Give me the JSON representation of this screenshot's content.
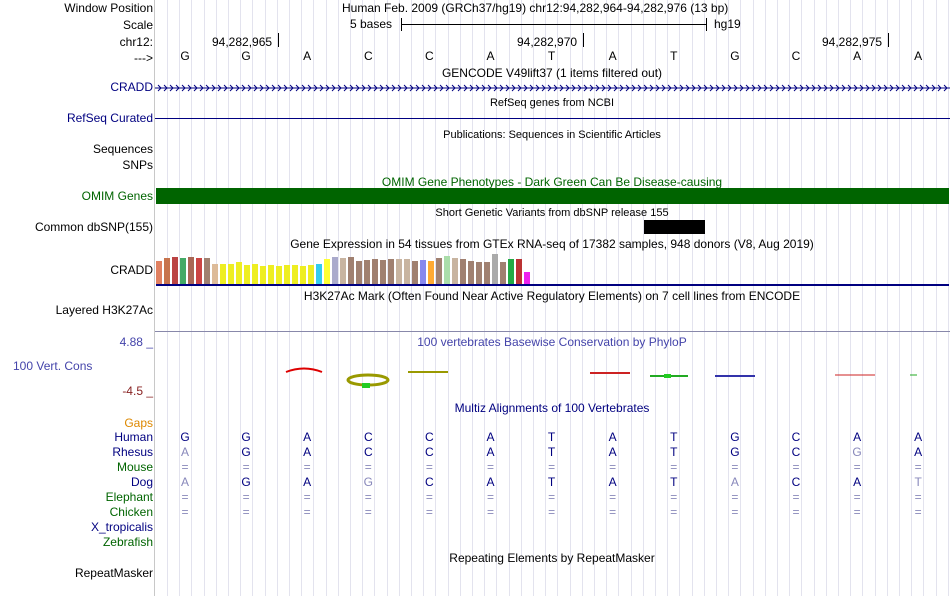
{
  "header": {
    "window_position_label": "Window Position",
    "window_position_value": "Human Feb. 2009 (GRCh37/hg19)   chr12:94,282,964-94,282,976 (13 bp)",
    "scale_label": "Scale",
    "scale_text": "5 bases",
    "scale_assembly": "hg19",
    "chrom_label": "chr12:",
    "positions": [
      "94,282,965",
      "94,282,970",
      "94,282,975"
    ],
    "strand_label": "--->"
  },
  "sequence": [
    "G",
    "G",
    "A",
    "C",
    "C",
    "A",
    "T",
    "A",
    "T",
    "G",
    "C",
    "A",
    "A"
  ],
  "tracks": {
    "gencode": {
      "title": "GENCODE V49lift37 (1 items filtered out)",
      "label": "CRADD"
    },
    "refseq": {
      "title": "RefSeq genes from NCBI",
      "label": "RefSeq Curated"
    },
    "publications": {
      "title": "Publications: Sequences in Scientific Articles",
      "label_line1": "Sequences",
      "label_line2": "SNPs"
    },
    "omim": {
      "title": "OMIM Gene Phenotypes - Dark Green Can Be Disease-causing",
      "label": "OMIM Genes"
    },
    "dbsnp": {
      "title": "Short Genetic Variants from dbSNP release 155",
      "label": "Common dbSNP(155)"
    },
    "gtex": {
      "title": "Gene Expression in 54 tissues from GTEx RNA-seq of 17382 samples, 948 donors (V8, Aug 2019)",
      "label": "CRADD",
      "bar_colors": [
        "#e08060",
        "#c7744d",
        "#bb4444",
        "#44aa66",
        "#aa6655",
        "#cc4444",
        "#a08070",
        "#ddbb99",
        "#eeee22",
        "#eeee22",
        "#eeee22",
        "#eeee22",
        "#eeee22",
        "#eeee22",
        "#eeee22",
        "#eeee22",
        "#eeee22",
        "#eeee22",
        "#eeee22",
        "#eeee22",
        "#33ccee",
        "#ffff33",
        "#aaaacc",
        "#c8b4a0",
        "#a08070",
        "#a08070",
        "#a08070",
        "#a08070",
        "#a08070",
        "#a08070",
        "#c8b4a0",
        "#c8b4a0",
        "#a08070",
        "#8888ee",
        "#ffaa33",
        "#a08070",
        "#aaddaa",
        "#c8b4a0",
        "#a08070",
        "#a08070",
        "#a08070",
        "#a08070",
        "#aaaaaa",
        "#a08070",
        "#22aa44",
        "#bb3333",
        "#ee22ee"
      ],
      "bar_levels": [
        0.78,
        0.86,
        0.9,
        0.88,
        0.9,
        0.88,
        0.86,
        0.66,
        0.66,
        0.66,
        0.72,
        0.62,
        0.66,
        0.6,
        0.64,
        0.6,
        0.62,
        0.64,
        0.6,
        0.62,
        0.66,
        0.84,
        0.9,
        0.88,
        0.9,
        0.78,
        0.8,
        0.82,
        0.8,
        0.82,
        0.84,
        0.82,
        0.78,
        0.8,
        0.76,
        0.86,
        0.92,
        0.86,
        0.84,
        0.78,
        0.74,
        0.74,
        1.0,
        0.74,
        0.82,
        0.84,
        0.4
      ]
    },
    "h3k27ac": {
      "title": "H3K27Ac Mark (Often Found Near Active Regulatory Elements) on 7 cell lines from ENCODE",
      "label": "Layered H3K27Ac"
    },
    "phylop": {
      "title": "100 vertebrates Basewise Conservation by PhyloP",
      "label": "100 Vert. Cons",
      "max": "4.88 _",
      "min": "-4.5 _"
    },
    "multiz": {
      "title": "Multiz Alignments of 100 Vertebrates",
      "gaps_label": "Gaps"
    },
    "repeatmasker": {
      "title": "Repeating Elements by RepeatMasker",
      "label": "RepeatMasker"
    }
  },
  "species": [
    {
      "name": "Human",
      "color": "#000080",
      "bases": [
        "G",
        "G",
        "A",
        "C",
        "C",
        "A",
        "T",
        "A",
        "T",
        "G",
        "C",
        "A",
        "A"
      ],
      "base_colors": [
        "#000080",
        "#000080",
        "#000080",
        "#000080",
        "#000080",
        "#000080",
        "#000080",
        "#000080",
        "#000080",
        "#000080",
        "#000080",
        "#000080",
        "#000080"
      ]
    },
    {
      "name": "Rhesus",
      "color": "#000080",
      "bases": [
        "A",
        "G",
        "A",
        "C",
        "C",
        "A",
        "T",
        "A",
        "T",
        "G",
        "C",
        "G",
        "A"
      ],
      "base_colors": [
        "#8888bb",
        "#000080",
        "#000080",
        "#000080",
        "#000080",
        "#000080",
        "#000080",
        "#000080",
        "#000080",
        "#000080",
        "#000080",
        "#8888bb",
        "#000080"
      ]
    },
    {
      "name": "Mouse",
      "color": "#006400",
      "bases": [
        "=",
        "=",
        "=",
        "=",
        "=",
        "=",
        "=",
        "=",
        "=",
        "=",
        "=",
        "=",
        "="
      ],
      "base_colors": [
        "#8888bb",
        "#8888bb",
        "#8888bb",
        "#8888bb",
        "#8888bb",
        "#8888bb",
        "#8888bb",
        "#8888bb",
        "#8888bb",
        "#8888bb",
        "#8888bb",
        "#8888bb",
        "#8888bb"
      ]
    },
    {
      "name": "Dog",
      "color": "#000080",
      "bases": [
        "A",
        "G",
        "A",
        "G",
        "C",
        "A",
        "T",
        "A",
        "T",
        "A",
        "C",
        "A",
        "T"
      ],
      "base_colors": [
        "#8888bb",
        "#000080",
        "#000080",
        "#8888bb",
        "#000080",
        "#000080",
        "#000080",
        "#000080",
        "#000080",
        "#8888bb",
        "#000080",
        "#000080",
        "#8888bb"
      ]
    },
    {
      "name": "Elephant",
      "color": "#006400",
      "bases": [
        "=",
        "=",
        "=",
        "=",
        "=",
        "=",
        "=",
        "=",
        "=",
        "=",
        "=",
        "=",
        "="
      ],
      "base_colors": [
        "#8888bb",
        "#8888bb",
        "#8888bb",
        "#8888bb",
        "#8888bb",
        "#8888bb",
        "#8888bb",
        "#8888bb",
        "#8888bb",
        "#8888bb",
        "#8888bb",
        "#8888bb",
        "#8888bb"
      ]
    },
    {
      "name": "Chicken",
      "color": "#006400",
      "bases": [
        "=",
        "=",
        "=",
        "=",
        "=",
        "=",
        "=",
        "=",
        "=",
        "=",
        "=",
        "=",
        "="
      ],
      "base_colors": [
        "#8888bb",
        "#8888bb",
        "#8888bb",
        "#8888bb",
        "#8888bb",
        "#8888bb",
        "#8888bb",
        "#8888bb",
        "#8888bb",
        "#8888bb",
        "#8888bb",
        "#8888bb",
        "#8888bb"
      ]
    },
    {
      "name": "X_tropicalis",
      "color": "#000080",
      "bases": [],
      "base_colors": []
    },
    {
      "name": "Zebrafish",
      "color": "#006400",
      "bases": [],
      "base_colors": []
    }
  ],
  "colors": {
    "track_label": "#000080",
    "omim_green": "#006400",
    "gaps_orange": "#dd8800",
    "phylop_label": "#4444aa",
    "phylop_axis": "#882222"
  }
}
